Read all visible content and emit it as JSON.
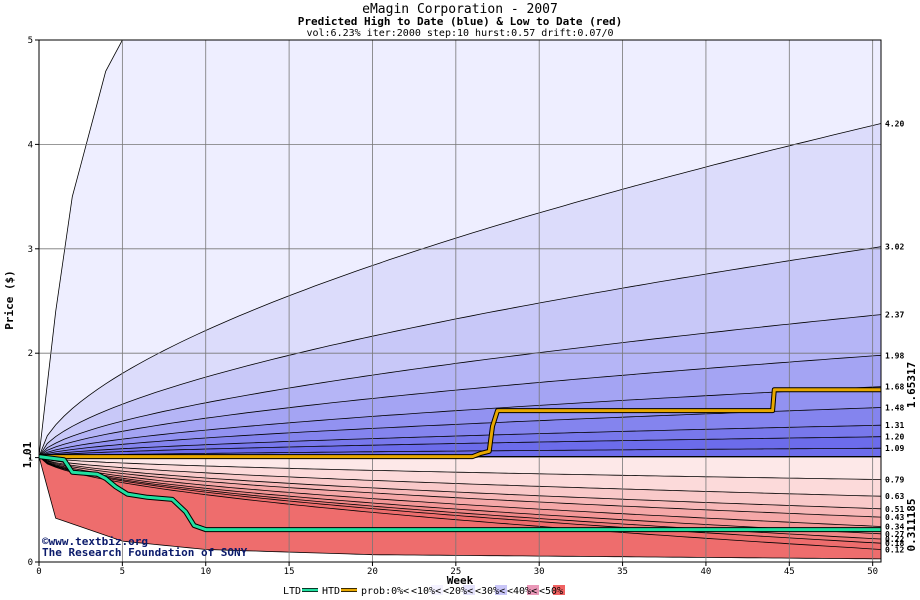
{
  "chart_data": {
    "type": "area",
    "title": "eMagin Corporation - 2007",
    "subtitle": "Predicted High to Date (blue) &  Low to Date (red)",
    "params": "vol:6.23% iter:2000 step:10 hurst:0.57 drift:0.07/0",
    "xlabel": "Week",
    "ylabel": "Price ($)",
    "xlim": [
      0,
      50.5
    ],
    "ylim": [
      0,
      5
    ],
    "xticks": [
      0,
      5,
      10,
      15,
      20,
      25,
      30,
      35,
      40,
      45,
      50
    ],
    "yticks": [
      0,
      1,
      2,
      3,
      4,
      5
    ],
    "grid": true,
    "start_price": 1.01,
    "start_price_label": "1.01",
    "current_high_label": "1.65317",
    "current_low_label": "0.311185",
    "blue_band_end_values": [
      4.2,
      3.02,
      2.37,
      1.98,
      1.68,
      1.48,
      1.31,
      1.2,
      1.09
    ],
    "blue_band_end_labels": [
      "4.20",
      "3.02",
      "2.37",
      "1.98",
      "1.68",
      "1.48",
      "1.31",
      "1.20",
      "1.09"
    ],
    "red_band_end_values": [
      0.79,
      0.63,
      0.51,
      0.43,
      0.34,
      0.27,
      0.22,
      0.18,
      0.12
    ],
    "red_band_end_labels": [
      "0.79",
      "0.63",
      "0.51",
      "0.43",
      "0.34",
      "0.27",
      "0.22",
      "0.18",
      "0.12"
    ],
    "blue_outer_curve": [
      [
        0,
        1.01
      ],
      [
        1,
        2.4
      ],
      [
        2,
        3.5
      ],
      [
        4,
        4.7
      ],
      [
        5,
        5.0
      ]
    ],
    "red_outer_curve": [
      [
        0,
        1.01
      ],
      [
        1,
        0.42
      ],
      [
        5,
        0.2
      ],
      [
        10,
        0.12
      ],
      [
        20,
        0.07
      ],
      [
        50.5,
        0.03
      ]
    ],
    "series": [
      {
        "name": "HTD",
        "color": "#e8a800",
        "points": [
          [
            0,
            1.01
          ],
          [
            26,
            1.01
          ],
          [
            26.5,
            1.04
          ],
          [
            27,
            1.06
          ],
          [
            27.2,
            1.3
          ],
          [
            27.5,
            1.45
          ],
          [
            44,
            1.45
          ],
          [
            44.1,
            1.65
          ],
          [
            50.5,
            1.65
          ]
        ]
      },
      {
        "name": "LTD",
        "color": "#20e0a0",
        "points": [
          [
            0,
            1.01
          ],
          [
            1.5,
            0.98
          ],
          [
            2,
            0.86
          ],
          [
            3.5,
            0.84
          ],
          [
            4,
            0.8
          ],
          [
            4.6,
            0.72
          ],
          [
            5.3,
            0.65
          ],
          [
            6.5,
            0.62
          ],
          [
            8,
            0.6
          ],
          [
            8.8,
            0.48
          ],
          [
            9.3,
            0.35
          ],
          [
            10,
            0.31
          ],
          [
            50.5,
            0.31
          ]
        ]
      }
    ],
    "legend": {
      "items": [
        {
          "label": "LTD",
          "color": "#20e0a0",
          "kind": "line"
        },
        {
          "label": "HTD",
          "color": "#e8a800",
          "kind": "line"
        },
        {
          "label": "prob:0%<",
          "color": "#ffffff",
          "kind": "box"
        },
        {
          "label": "<10%<",
          "color": "#f4f2ff",
          "kind": "box"
        },
        {
          "label": "<20%<",
          "color": "#e4e2fb",
          "kind": "box"
        },
        {
          "label": "<30%<",
          "color": "#c9c6f8",
          "kind": "box"
        },
        {
          "label": "<40%<",
          "color": "#ea98b8",
          "kind": "box"
        },
        {
          "label": "<50%",
          "color": "#f06262",
          "kind": "box"
        }
      ]
    },
    "watermark": [
      "©www.textbiz.org",
      "The Research Foundation of SONY"
    ],
    "blue_fills": [
      "#eeeeff",
      "#dcdcfb",
      "#c8c8f8",
      "#b5b5f6",
      "#a4a4f3",
      "#9292f1",
      "#8484ee",
      "#7878ec",
      "#6c6ceb"
    ],
    "red_fills": [
      "#fde8e8",
      "#fcdada",
      "#f9c9c9",
      "#f7b8b8",
      "#f5a8a8",
      "#f39797",
      "#f18888",
      "#ef7a7a",
      "#ee6d6d"
    ]
  }
}
